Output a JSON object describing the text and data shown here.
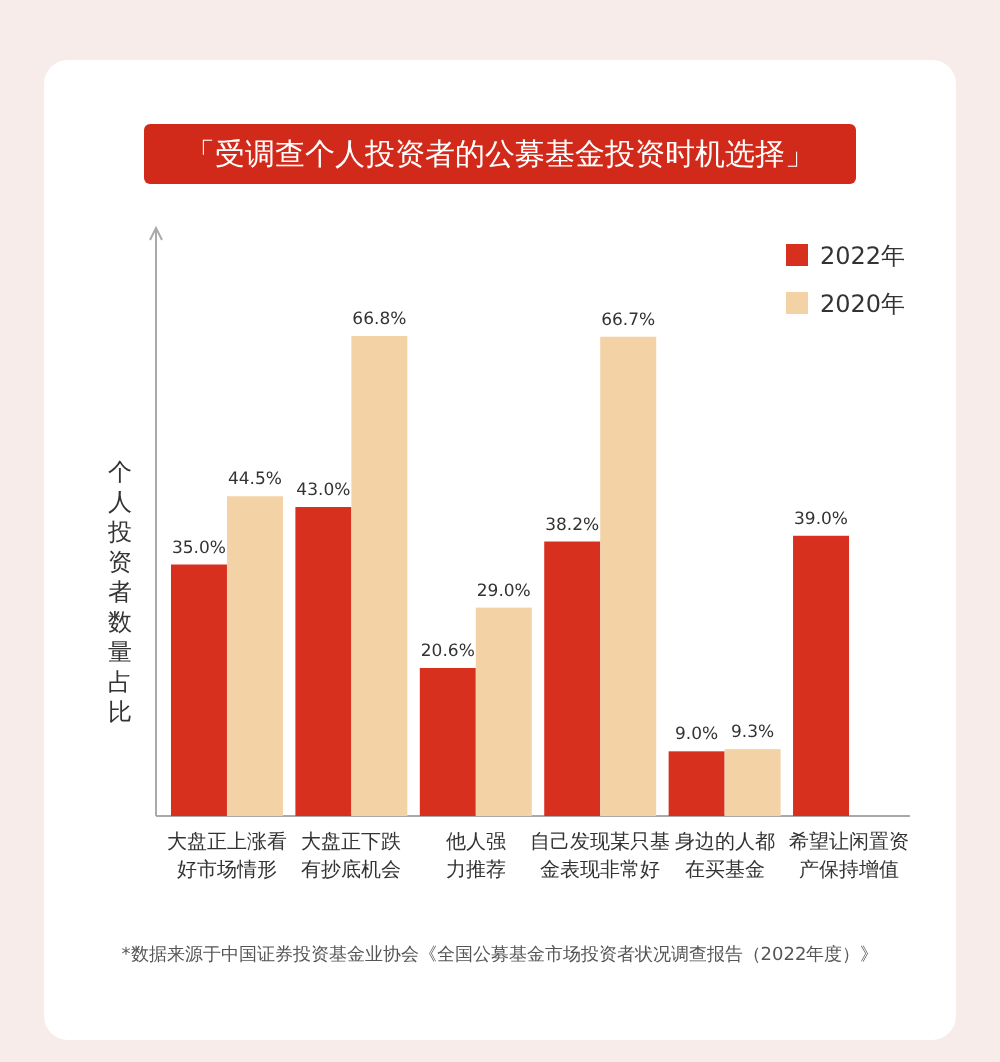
{
  "chart_data": {
    "type": "bar",
    "title": "「受调查个人投资者的公募基金投资时机选择」",
    "ylabel": "个人投资者数量占比",
    "categories": [
      "大盘正上涨看好市场情形",
      "大盘正下跌有抄底机会",
      "他人强力推荐",
      "自己发现某只基金表现非常好",
      "身边的人都在买基金",
      "希望让闲置资产保持增值"
    ],
    "series": [
      {
        "name": "2022年",
        "color": "#d8301f",
        "values": [
          35.0,
          43.0,
          20.6,
          38.2,
          9.0,
          39.0
        ],
        "value_labels": [
          "35.0%",
          "43.0%",
          "20.6%",
          "38.2%",
          "9.0%",
          "39.0%"
        ]
      },
      {
        "name": "2020年",
        "color": "#f3d2a6",
        "values": [
          44.5,
          66.8,
          29.0,
          66.7,
          9.3,
          null
        ],
        "value_labels": [
          "44.5%",
          "66.8%",
          "29.0%",
          "66.7%",
          "9.3%",
          null
        ]
      }
    ],
    "legend": "top right",
    "annotations": [
      "*数据来源于中国证券投资基金业协会《全国公募基金市场投资者状况调查报告（2022年度）》"
    ]
  }
}
